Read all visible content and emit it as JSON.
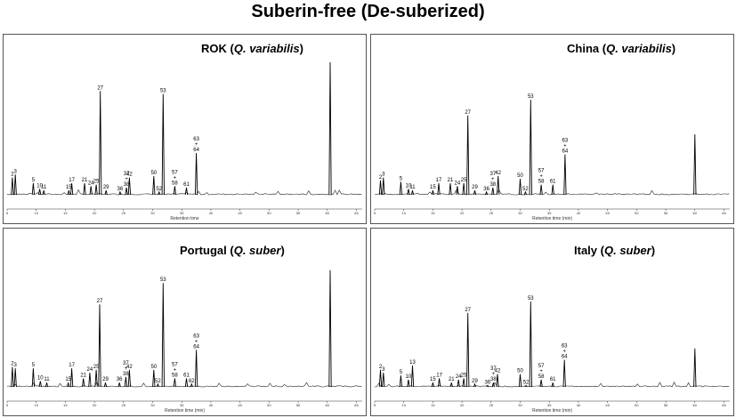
{
  "title": "Suberin-free (De-suberized)",
  "chart_data": [
    {
      "type": "line",
      "location": "ROK",
      "species": "Q. variabilis",
      "xlabel": "Retention time",
      "tick_labels": [
        "5",
        "10",
        "15",
        "20",
        "25",
        "30",
        "35",
        "40",
        "45",
        "50",
        "55",
        "60",
        "65"
      ],
      "xlim": [
        5,
        66
      ],
      "ylim": [
        0,
        100
      ],
      "peaks": [
        {
          "label": "2",
          "x": 5.9,
          "y": 12
        },
        {
          "label": "3",
          "x": 6.4,
          "y": 14
        },
        {
          "label": "5",
          "x": 9.5,
          "y": 8
        },
        {
          "label": "10",
          "x": 10.6,
          "y": 4
        },
        {
          "label": "11",
          "x": 11.3,
          "y": 3
        },
        {
          "label": "15",
          "x": 15.6,
          "y": 3
        },
        {
          "label": "17",
          "x": 16.1,
          "y": 8
        },
        {
          "label": "21",
          "x": 18.3,
          "y": 8
        },
        {
          "label": "24",
          "x": 19.4,
          "y": 6
        },
        {
          "label": "25",
          "x": 20.3,
          "y": 7
        },
        {
          "label": "27",
          "x": 21.0,
          "y": 72
        },
        {
          "label": "29",
          "x": 22.0,
          "y": 3
        },
        {
          "label": "36",
          "x": 24.4,
          "y": 2
        },
        {
          "label": "37\n+\n38",
          "x": 25.5,
          "y": 5
        },
        {
          "label": "42",
          "x": 26.0,
          "y": 12
        },
        {
          "label": "50",
          "x": 30.2,
          "y": 13
        },
        {
          "label": "52",
          "x": 31.1,
          "y": 2
        },
        {
          "label": "53",
          "x": 31.8,
          "y": 70
        },
        {
          "label": "57\n+\n58",
          "x": 33.8,
          "y": 6
        },
        {
          "label": "61",
          "x": 35.8,
          "y": 5
        },
        {
          "label": "63\n+\n64",
          "x": 37.5,
          "y": 29
        },
        {
          "label": "",
          "x": 60.5,
          "y": 92
        }
      ]
    },
    {
      "type": "line",
      "location": "China",
      "species": "Q. variabilis",
      "xlabel": "Retention time (min)",
      "tick_labels": [
        "5",
        "10",
        "15",
        "20",
        "25",
        "30",
        "35",
        "40",
        "45",
        "50",
        "55",
        "60",
        "65"
      ],
      "xlim": [
        5,
        66
      ],
      "ylim": [
        0,
        100
      ],
      "peaks": [
        {
          "label": "2",
          "x": 6.0,
          "y": 10
        },
        {
          "label": "3",
          "x": 6.5,
          "y": 12
        },
        {
          "label": "5",
          "x": 9.5,
          "y": 9
        },
        {
          "label": "10",
          "x": 10.8,
          "y": 4
        },
        {
          "label": "11",
          "x": 11.5,
          "y": 3
        },
        {
          "label": "15",
          "x": 15.0,
          "y": 3
        },
        {
          "label": "17",
          "x": 16.0,
          "y": 8
        },
        {
          "label": "21",
          "x": 18.0,
          "y": 8
        },
        {
          "label": "24",
          "x": 19.2,
          "y": 6
        },
        {
          "label": "25",
          "x": 20.3,
          "y": 8
        },
        {
          "label": "27",
          "x": 21.0,
          "y": 55
        },
        {
          "label": "29",
          "x": 22.2,
          "y": 3
        },
        {
          "label": "36",
          "x": 24.2,
          "y": 2
        },
        {
          "label": "37\n+\n38",
          "x": 25.3,
          "y": 5
        },
        {
          "label": "42",
          "x": 26.2,
          "y": 13
        },
        {
          "label": "50",
          "x": 30.0,
          "y": 11
        },
        {
          "label": "52",
          "x": 30.9,
          "y": 2
        },
        {
          "label": "53",
          "x": 31.8,
          "y": 66
        },
        {
          "label": "57\n+\n58",
          "x": 33.6,
          "y": 7
        },
        {
          "label": "61",
          "x": 35.6,
          "y": 7
        },
        {
          "label": "63\n+\n64",
          "x": 37.7,
          "y": 28
        },
        {
          "label": "",
          "x": 60.0,
          "y": 42
        }
      ]
    },
    {
      "type": "line",
      "location": "Portugal",
      "species": "Q. suber",
      "xlabel": "Retention time (min)",
      "tick_labels": [
        "5",
        "10",
        "15",
        "20",
        "25",
        "30",
        "35",
        "40",
        "45",
        "50",
        "55",
        "60",
        "65"
      ],
      "xlim": [
        5,
        66
      ],
      "ylim": [
        0,
        100
      ],
      "peaks": [
        {
          "label": "2",
          "x": 5.9,
          "y": 14
        },
        {
          "label": "3",
          "x": 6.4,
          "y": 13
        },
        {
          "label": "5",
          "x": 9.5,
          "y": 13
        },
        {
          "label": "10",
          "x": 10.7,
          "y": 4
        },
        {
          "label": "11",
          "x": 11.8,
          "y": 3
        },
        {
          "label": "15",
          "x": 15.5,
          "y": 3
        },
        {
          "label": "17",
          "x": 16.1,
          "y": 13
        },
        {
          "label": "21",
          "x": 18.1,
          "y": 6
        },
        {
          "label": "24",
          "x": 19.2,
          "y": 10
        },
        {
          "label": "25",
          "x": 20.3,
          "y": 12
        },
        {
          "label": "27",
          "x": 20.9,
          "y": 58
        },
        {
          "label": "29",
          "x": 21.9,
          "y": 3
        },
        {
          "label": "36",
          "x": 24.3,
          "y": 3
        },
        {
          "label": "37\n+\n38",
          "x": 25.4,
          "y": 7
        },
        {
          "label": "42",
          "x": 26.0,
          "y": 12
        },
        {
          "label": "50",
          "x": 30.2,
          "y": 12
        },
        {
          "label": "52",
          "x": 30.9,
          "y": 2
        },
        {
          "label": "53",
          "x": 31.8,
          "y": 73
        },
        {
          "label": "57\n+\n58",
          "x": 33.8,
          "y": 6
        },
        {
          "label": "61",
          "x": 35.8,
          "y": 6
        },
        {
          "label": "62",
          "x": 36.7,
          "y": 2
        },
        {
          "label": "63\n+\n64",
          "x": 37.5,
          "y": 26
        },
        {
          "label": "",
          "x": 60.5,
          "y": 82
        }
      ]
    },
    {
      "type": "line",
      "location": "Italy",
      "species": "Q. suber",
      "xlabel": "Retention time (min)",
      "tick_labels": [
        "5",
        "10",
        "15",
        "20",
        "25",
        "30",
        "35",
        "40",
        "45",
        "50",
        "55",
        "60",
        "65"
      ],
      "xlim": [
        5,
        66
      ],
      "ylim": [
        0,
        100
      ],
      "peaks": [
        {
          "label": "2",
          "x": 6.0,
          "y": 12
        },
        {
          "label": "3",
          "x": 6.5,
          "y": 10
        },
        {
          "label": "5",
          "x": 9.5,
          "y": 8
        },
        {
          "label": "10",
          "x": 10.8,
          "y": 5
        },
        {
          "label": "13",
          "x": 11.5,
          "y": 15
        },
        {
          "label": "15",
          "x": 15.0,
          "y": 3
        },
        {
          "label": "17",
          "x": 16.1,
          "y": 6
        },
        {
          "label": "21",
          "x": 18.2,
          "y": 3
        },
        {
          "label": "24",
          "x": 19.4,
          "y": 5
        },
        {
          "label": "25",
          "x": 20.3,
          "y": 6
        },
        {
          "label": "27",
          "x": 21.0,
          "y": 52
        },
        {
          "label": "29",
          "x": 22.2,
          "y": 2
        },
        {
          "label": "36",
          "x": 24.4,
          "y": 1
        },
        {
          "label": "37\n+\n38",
          "x": 25.4,
          "y": 3
        },
        {
          "label": "42",
          "x": 26.1,
          "y": 9
        },
        {
          "label": "50",
          "x": 30.0,
          "y": 9
        },
        {
          "label": "52",
          "x": 31.0,
          "y": 1
        },
        {
          "label": "53",
          "x": 31.8,
          "y": 60
        },
        {
          "label": "57\n+\n58",
          "x": 33.6,
          "y": 5
        },
        {
          "label": "61",
          "x": 35.6,
          "y": 3
        },
        {
          "label": "63\n+\n64",
          "x": 37.6,
          "y": 19
        },
        {
          "label": "",
          "x": 60.0,
          "y": 27
        }
      ]
    }
  ]
}
